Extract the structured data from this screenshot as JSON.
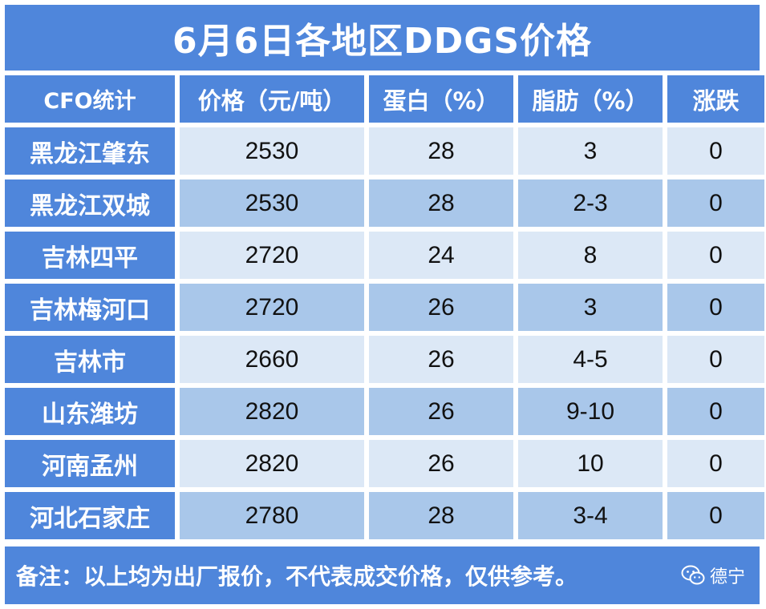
{
  "title": "6月6日各地区DDGS价格",
  "headers": [
    "CFO统计",
    "价格（元/吨）",
    "蛋白（%）",
    "脂肪（%）",
    "涨跌"
  ],
  "rows": [
    {
      "region": "黑龙江肇东",
      "price": "2530",
      "protein": "28",
      "fat": "3",
      "change": "0"
    },
    {
      "region": "黑龙江双城",
      "price": "2530",
      "protein": "28",
      "fat": "2-3",
      "change": "0"
    },
    {
      "region": "吉林四平",
      "price": "2720",
      "protein": "24",
      "fat": "8",
      "change": "0"
    },
    {
      "region": "吉林梅河口",
      "price": "2720",
      "protein": "26",
      "fat": "3",
      "change": "0"
    },
    {
      "region": "吉林市",
      "price": "2660",
      "protein": "26",
      "fat": "4-5",
      "change": "0"
    },
    {
      "region": "山东潍坊",
      "price": "2820",
      "protein": "26",
      "fat": "9-10",
      "change": "0"
    },
    {
      "region": "河南孟州",
      "price": "2820",
      "protein": "26",
      "fat": "10",
      "change": "0"
    },
    {
      "region": "河北石家庄",
      "price": "2780",
      "protein": "28",
      "fat": "3-4",
      "change": "0"
    }
  ],
  "note": "备注：以上均为出厂报价，不代表成交价格，仅供参考。",
  "brand": {
    "icon": "wechat-icon",
    "label": "德宁"
  },
  "colors": {
    "header_blue": "#4f86db",
    "light_row": "#dce8f6",
    "dark_row": "#a9c7ea"
  }
}
